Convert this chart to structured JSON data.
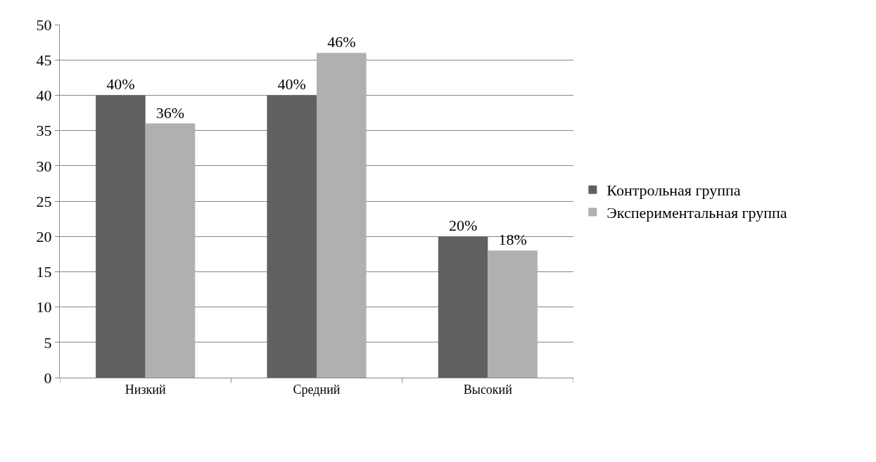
{
  "chart_data": {
    "type": "bar",
    "categories": [
      "Низкий",
      "Средний",
      "Высокий"
    ],
    "series": [
      {
        "name": "Контрольная группа",
        "color": "#606060",
        "values": [
          40,
          40,
          20
        ],
        "value_labels": [
          "40%",
          "40%",
          "20%"
        ]
      },
      {
        "name": "Экспериментальная группа",
        "color": "#b0b0b0",
        "values": [
          36,
          46,
          18
        ],
        "value_labels": [
          "36%",
          "46%",
          "18%"
        ]
      }
    ],
    "ylim": [
      0,
      50
    ],
    "yticks": [
      0,
      5,
      10,
      15,
      20,
      25,
      30,
      35,
      40,
      45,
      50
    ],
    "grid": "y",
    "legend": "right"
  }
}
